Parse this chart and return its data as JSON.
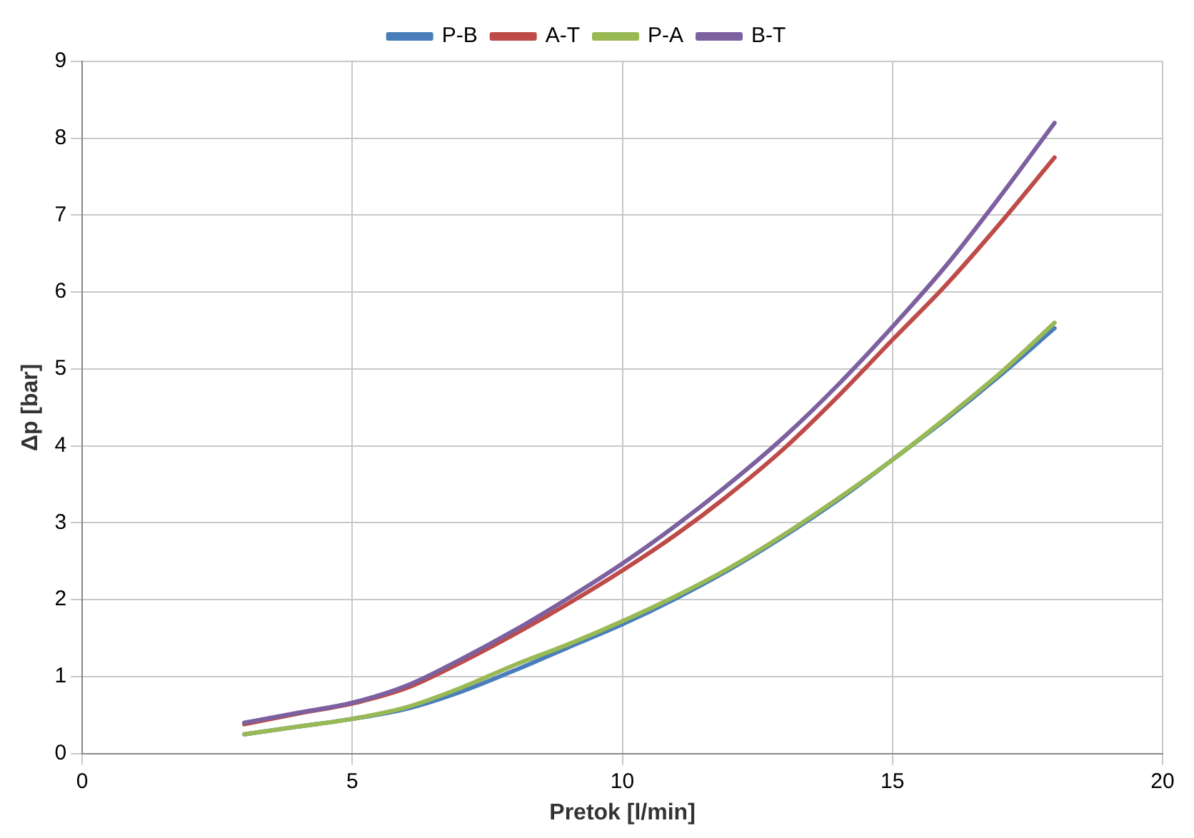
{
  "chart_data": {
    "type": "line",
    "xlabel": "Pretok [l/min]",
    "ylabel": "Δp [bar]",
    "x": [
      3,
      4,
      5,
      6,
      7,
      8,
      9,
      10,
      11,
      12,
      13,
      14,
      15,
      16,
      17,
      18
    ],
    "series": [
      {
        "name": "P-B",
        "color": "#4a7ebb",
        "values": [
          0.25,
          0.35,
          0.45,
          0.58,
          0.8,
          1.08,
          1.38,
          1.68,
          2.02,
          2.4,
          2.83,
          3.3,
          3.82,
          4.35,
          4.92,
          5.53
        ]
      },
      {
        "name": "A-T",
        "color": "#be4b48",
        "values": [
          0.38,
          0.52,
          0.65,
          0.85,
          1.18,
          1.55,
          1.95,
          2.38,
          2.85,
          3.38,
          3.97,
          4.65,
          5.38,
          6.1,
          6.9,
          7.75
        ]
      },
      {
        "name": "P-A",
        "color": "#98b954",
        "values": [
          0.25,
          0.35,
          0.45,
          0.6,
          0.85,
          1.15,
          1.42,
          1.72,
          2.05,
          2.42,
          2.85,
          3.32,
          3.82,
          4.37,
          4.95,
          5.6
        ]
      },
      {
        "name": "B-T",
        "color": "#7d60a0",
        "values": [
          0.4,
          0.53,
          0.66,
          0.88,
          1.22,
          1.6,
          2.02,
          2.47,
          2.97,
          3.52,
          4.12,
          4.8,
          5.55,
          6.35,
          7.25,
          8.2
        ]
      }
    ],
    "xlim": [
      0,
      20
    ],
    "xticks": [
      0,
      5,
      10,
      15,
      20
    ],
    "ylim": [
      0,
      9
    ],
    "yticks": [
      0,
      1,
      2,
      3,
      4,
      5,
      6,
      7,
      8,
      9
    ],
    "grid": true,
    "legend": "top",
    "marker": "none",
    "line_style": "solid"
  }
}
